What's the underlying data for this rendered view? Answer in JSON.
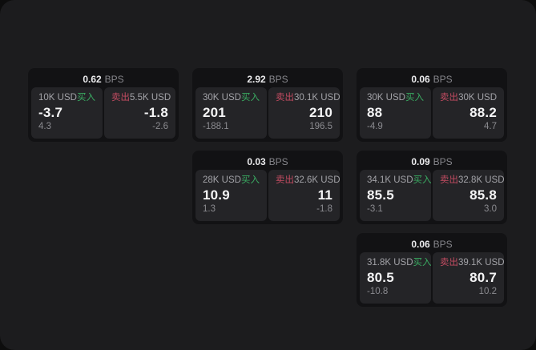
{
  "labels": {
    "bps_unit": "BPS",
    "buy": "买入",
    "sell": "卖出"
  },
  "colors": {
    "window_bg": "#1c1c1e",
    "card_bg": "#121214",
    "panel_bg": "#242427",
    "buy_green": "#3aab62",
    "sell_red": "#c24b61",
    "value_white": "#f4f4f5",
    "muted_gray": "#8b8b90"
  },
  "cards": [
    {
      "bps": "0.62",
      "buy": {
        "amount": "10K USD",
        "value": "-3.7",
        "sub": "4.3"
      },
      "sell": {
        "amount": "5.5K USD",
        "value": "-1.8",
        "sub": "-2.6"
      }
    },
    {
      "bps": "2.92",
      "buy": {
        "amount": "30K USD",
        "value": "201",
        "sub": "-188.1"
      },
      "sell": {
        "amount": "30.1K USD",
        "value": "210",
        "sub": "196.5"
      }
    },
    {
      "bps": "0.06",
      "buy": {
        "amount": "30K USD",
        "value": "88",
        "sub": "-4.9"
      },
      "sell": {
        "amount": "30K USD",
        "value": "88.2",
        "sub": "4.7"
      }
    },
    {
      "bps": "0.03",
      "buy": {
        "amount": "28K USD",
        "value": "10.9",
        "sub": "1.3"
      },
      "sell": {
        "amount": "32.6K USD",
        "value": "11",
        "sub": "-1.8"
      }
    },
    {
      "bps": "0.09",
      "buy": {
        "amount": "34.1K USD",
        "value": "85.5",
        "sub": "-3.1"
      },
      "sell": {
        "amount": "32.8K USD",
        "value": "85.8",
        "sub": "3.0"
      }
    },
    {
      "bps": "0.06",
      "buy": {
        "amount": "31.8K USD",
        "value": "80.5",
        "sub": "-10.8"
      },
      "sell": {
        "amount": "39.1K USD",
        "value": "80.7",
        "sub": "10.2"
      }
    }
  ]
}
